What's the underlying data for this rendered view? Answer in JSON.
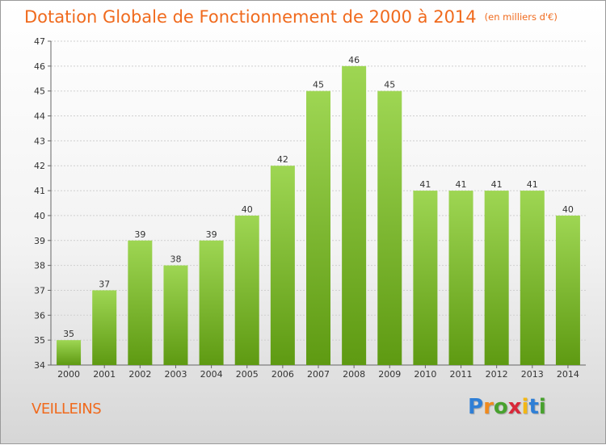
{
  "header": {
    "title": "Dotation Globale de Fonctionnement de 2000 à 2014",
    "unit": "(en milliers d'€)"
  },
  "footer": {
    "commune": "VEILLEINS",
    "logo_letters": [
      "P",
      "r",
      "o",
      "x",
      "i",
      "t",
      "i"
    ],
    "logo_colors": [
      "#2f7fd6",
      "#f08a1e",
      "#48a12e",
      "#d8283a",
      "#f3b715",
      "#2f7fd6",
      "#48a12e"
    ]
  },
  "colors": {
    "accent": "#f06a1d",
    "bar_top": "#9ed653",
    "bar_bottom": "#5e9a12",
    "grid": "#cfcfcf"
  },
  "chart_data": {
    "type": "bar",
    "categories": [
      "2000",
      "2001",
      "2002",
      "2003",
      "2004",
      "2005",
      "2006",
      "2007",
      "2008",
      "2009",
      "2010",
      "2011",
      "2012",
      "2013",
      "2014"
    ],
    "values": [
      35,
      37,
      39,
      38,
      39,
      40,
      42,
      45,
      46,
      45,
      41,
      41,
      41,
      41,
      40
    ],
    "ylim": [
      34,
      47
    ],
    "yticks": [
      34,
      35,
      36,
      37,
      38,
      39,
      40,
      41,
      42,
      43,
      44,
      45,
      46,
      47
    ],
    "grid": true,
    "legend": "none"
  }
}
